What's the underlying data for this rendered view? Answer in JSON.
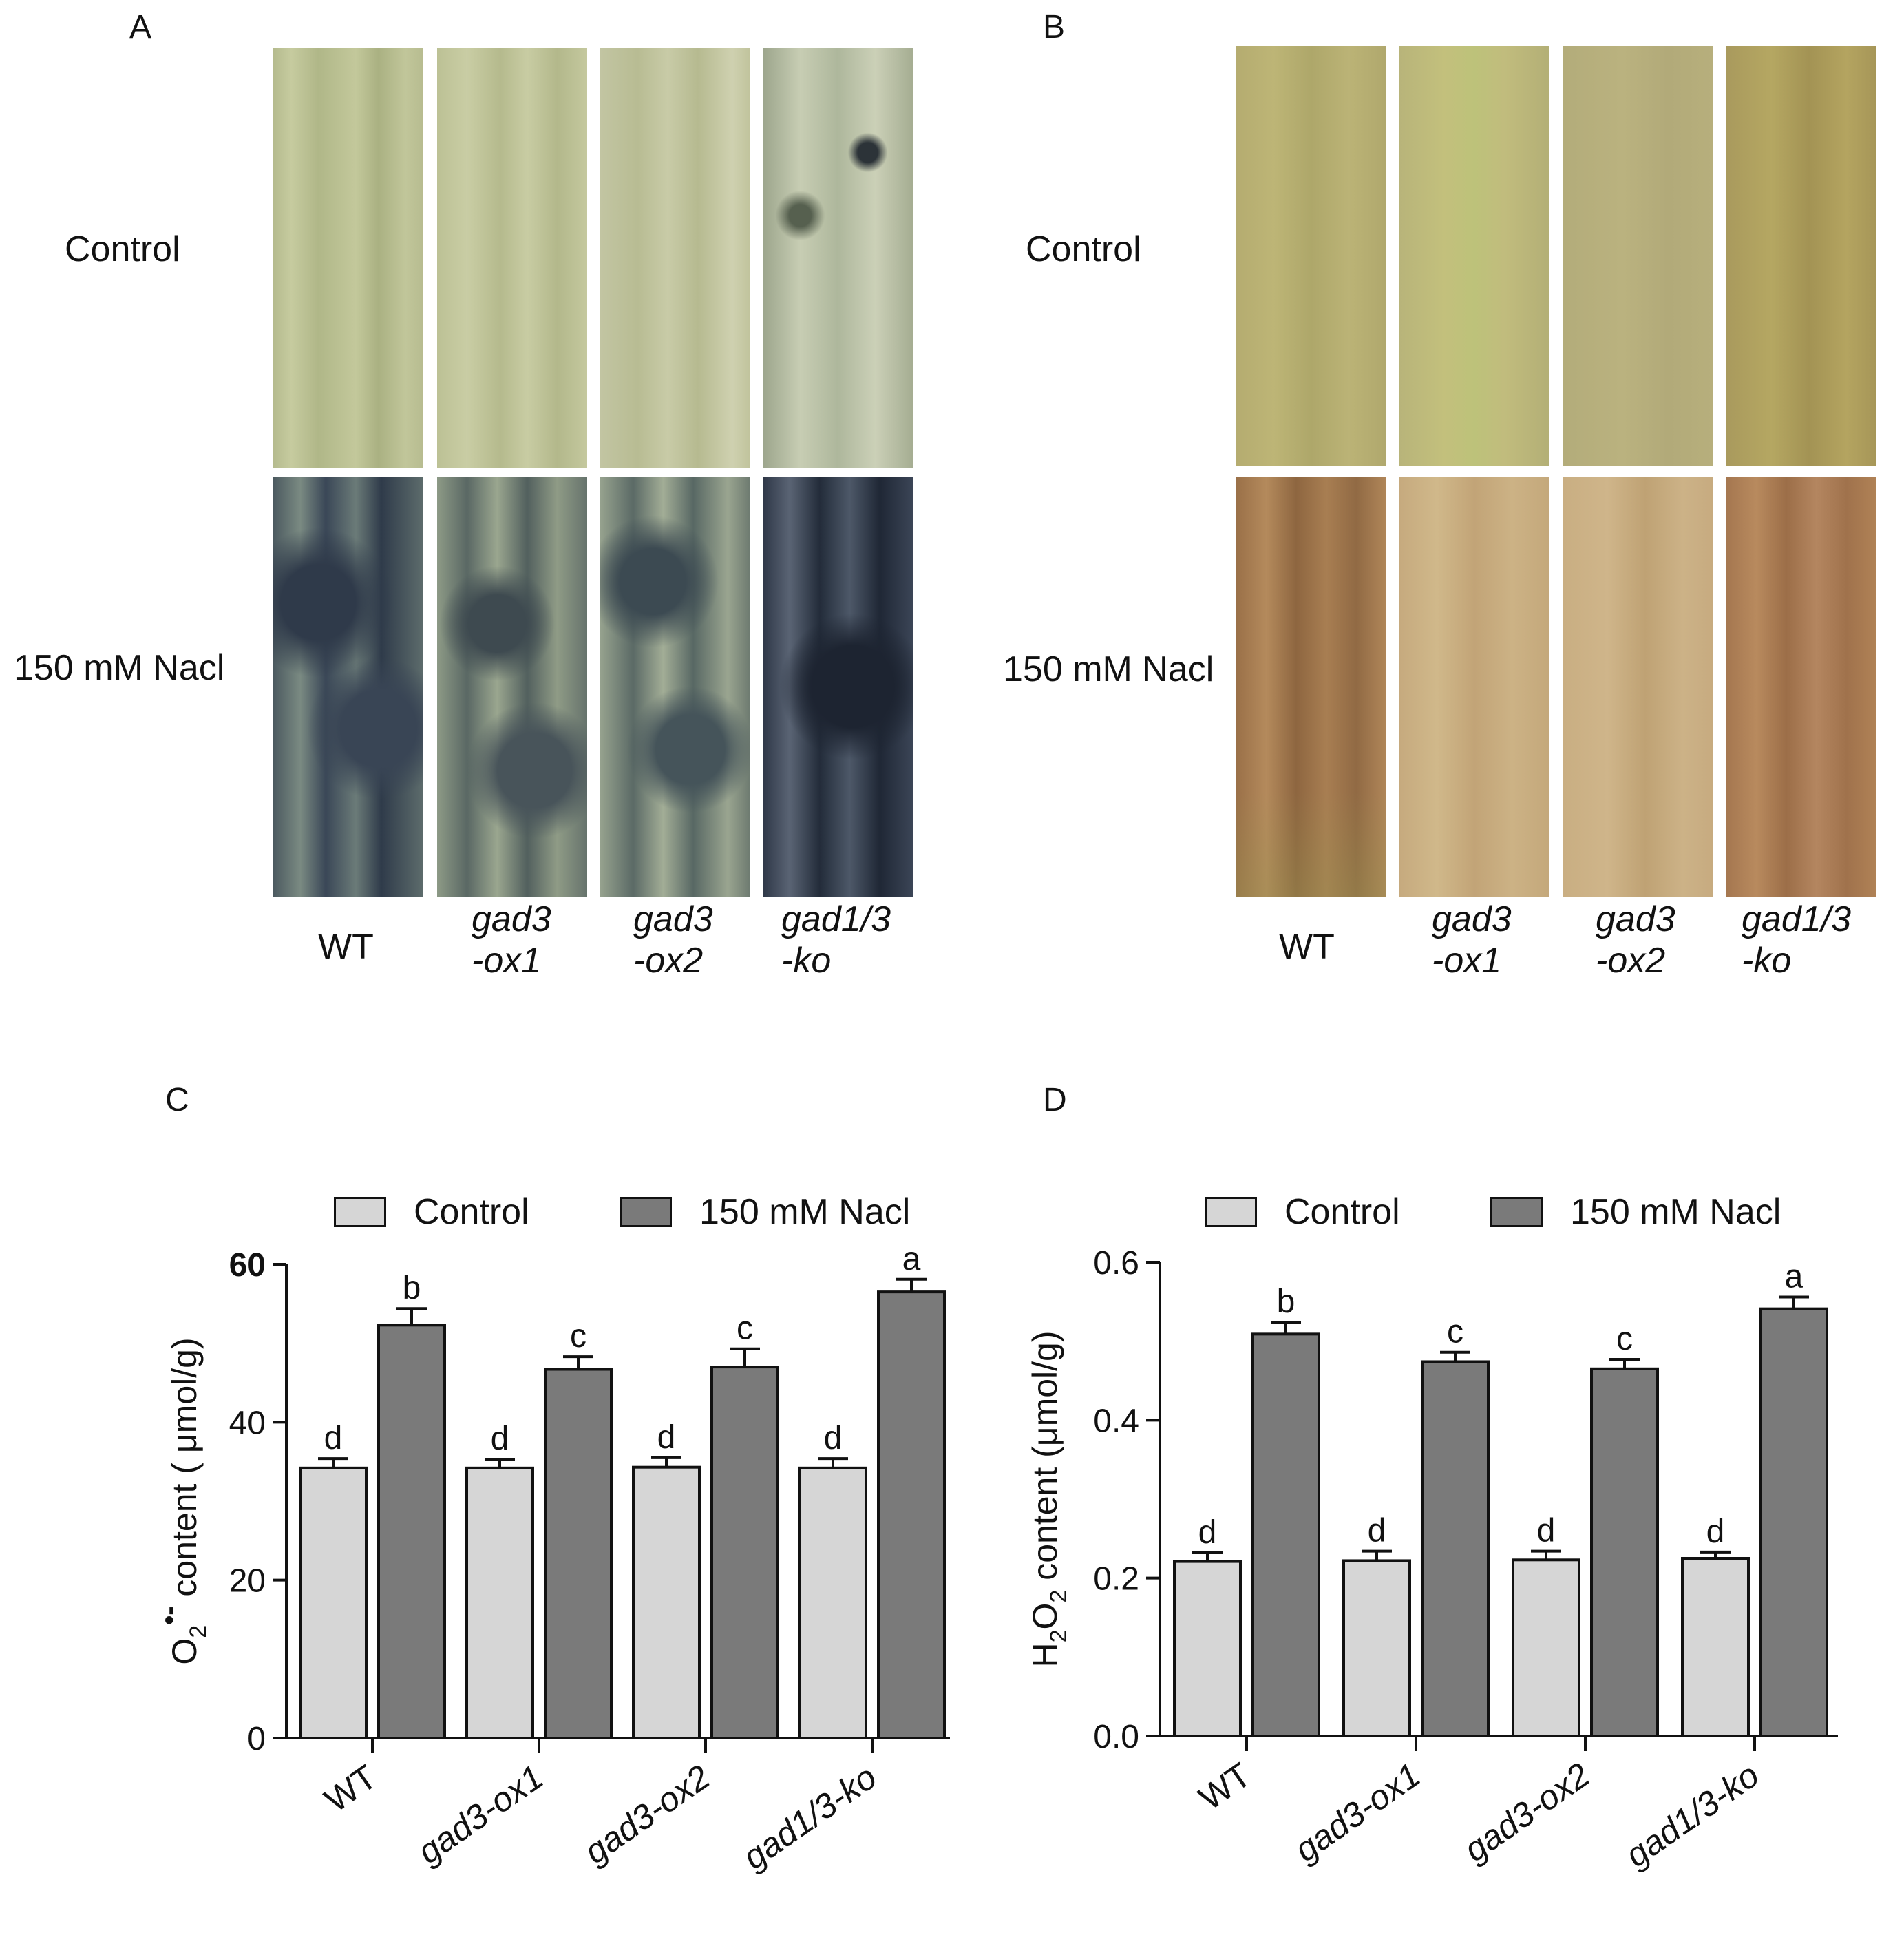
{
  "panels": {
    "a": {
      "letter": "A",
      "row_top": "Control",
      "row_bottom": "150 mM Nacl"
    },
    "b": {
      "letter": "B",
      "row_top": "Control",
      "row_bottom": "150 mM Nacl"
    },
    "c": {
      "letter": "C"
    },
    "d": {
      "letter": "D"
    }
  },
  "genotypes": [
    {
      "line1": "WT",
      "line2": ""
    },
    {
      "line1": "gad3",
      "line2": "-ox1"
    },
    {
      "line1": "gad3",
      "line2": "-ox2"
    },
    {
      "line1": "gad1/3",
      "line2": "-ko"
    }
  ],
  "colors": {
    "control_bar": "#d6d6d6",
    "nacl_bar": "#7a7a7a",
    "axis": "#111111",
    "nbt_control": "#bfc49a",
    "nbt_salt": "#3e4a5a",
    "dab_control": "#b9ad72",
    "dab_salt": "#b88a55"
  },
  "chart_data": [
    {
      "id": "C",
      "type": "bar",
      "categories": [
        "WT",
        "gad3-ox1",
        "gad3-ox2",
        "gad1/3-ko"
      ],
      "series": [
        {
          "name": "Control",
          "values": [
            34.2,
            34.2,
            34.3,
            34.2
          ],
          "errors": [
            1.2,
            1.1,
            1.2,
            1.2
          ],
          "letters": [
            "d",
            "d",
            "d",
            "d"
          ]
        },
        {
          "name": "150 mM Nacl",
          "values": [
            52.3,
            46.7,
            47.0,
            56.5
          ],
          "errors": [
            2.1,
            1.6,
            2.3,
            1.6
          ],
          "letters": [
            "b",
            "c",
            "c",
            "a"
          ]
        }
      ],
      "ylabel": "O2•- content ( μmol/g)",
      "ylabel_parts": {
        "pre": "O",
        "sub": "2",
        "sup": "•-",
        "post": "content ( μmol/g)"
      },
      "ylim": [
        0,
        60
      ],
      "yticks": [
        "0",
        "20",
        "40",
        "60"
      ],
      "legend": [
        "Control",
        "150 mM Nacl"
      ]
    },
    {
      "id": "D",
      "type": "bar",
      "categories": [
        "WT",
        "gad3-ox1",
        "gad3-ox2",
        "gad1/3-ko"
      ],
      "series": [
        {
          "name": "Control",
          "values": [
            0.221,
            0.222,
            0.223,
            0.225
          ],
          "errors": [
            0.011,
            0.012,
            0.011,
            0.008
          ],
          "letters": [
            "d",
            "d",
            "d",
            "d"
          ]
        },
        {
          "name": "150 mM Nacl",
          "values": [
            0.509,
            0.474,
            0.465,
            0.541
          ],
          "errors": [
            0.015,
            0.012,
            0.012,
            0.015
          ],
          "letters": [
            "b",
            "c",
            "c",
            "a"
          ]
        }
      ],
      "ylabel": "H2O2 content (μmol/g)",
      "ylabel_parts": {
        "pre": "H",
        "sub": "2",
        "mid": "O",
        "sub2": "2",
        "post": "content (μmol/g)"
      },
      "ylim": [
        0,
        0.6
      ],
      "yticks": [
        "0.0",
        "0.2",
        "0.4",
        "0.6"
      ],
      "legend": [
        "Control",
        "150 mM Nacl"
      ]
    }
  ]
}
